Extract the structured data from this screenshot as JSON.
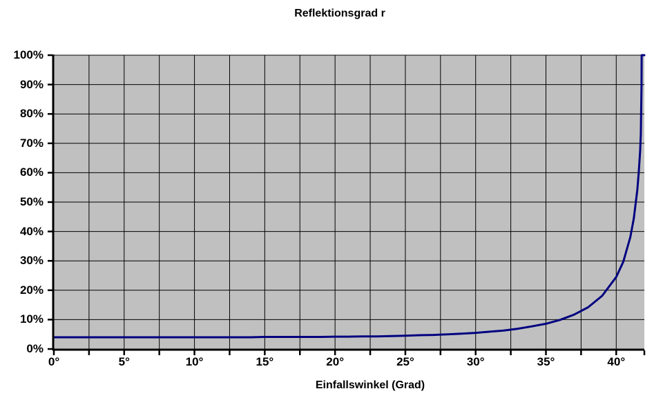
{
  "chart_data": {
    "type": "line",
    "title": "Reflektionsgrad r",
    "xlabel": "Einfallswinkel (Grad)",
    "ylabel": "",
    "xlim": [
      0,
      42
    ],
    "ylim": [
      0,
      100
    ],
    "x_gridline_step": 2.5,
    "y_gridline_step": 10,
    "x_tick_step": 2.5,
    "y_tick_step": 10,
    "x_tick_labels": [
      "0°",
      "5°",
      "10°",
      "15°",
      "20°",
      "25°",
      "30°",
      "35°",
      "40°"
    ],
    "x_tick_label_values": [
      0,
      5,
      10,
      15,
      20,
      25,
      30,
      35,
      40
    ],
    "y_tick_labels": [
      "0%",
      "10%",
      "20%",
      "30%",
      "40%",
      "50%",
      "60%",
      "70%",
      "80%",
      "90%",
      "100%"
    ],
    "y_tick_label_values": [
      0,
      10,
      20,
      30,
      40,
      50,
      60,
      70,
      80,
      90,
      100
    ],
    "grid": true,
    "legend": "none",
    "colors": {
      "plot_background": "#c0c0c0",
      "gridline": "#000000",
      "axis": "#000000",
      "line": "#000080",
      "text": "#000000",
      "page_background": "#ffffff"
    },
    "series": [
      {
        "name": "Reflektionsgrad r",
        "points": [
          [
            0,
            4.0
          ],
          [
            1,
            4.0
          ],
          [
            2,
            4.0
          ],
          [
            3,
            4.0
          ],
          [
            4,
            4.0
          ],
          [
            5,
            4.0
          ],
          [
            6,
            4.0
          ],
          [
            7,
            4.0
          ],
          [
            8,
            4.0
          ],
          [
            9,
            4.0
          ],
          [
            10,
            4.0
          ],
          [
            11,
            4.0
          ],
          [
            12,
            4.0
          ],
          [
            13,
            4.0
          ],
          [
            14,
            4.0
          ],
          [
            15,
            4.1
          ],
          [
            16,
            4.1
          ],
          [
            17,
            4.1
          ],
          [
            18,
            4.1
          ],
          [
            19,
            4.1
          ],
          [
            20,
            4.2
          ],
          [
            21,
            4.2
          ],
          [
            22,
            4.3
          ],
          [
            23,
            4.3
          ],
          [
            24,
            4.4
          ],
          [
            25,
            4.5
          ],
          [
            26,
            4.7
          ],
          [
            27,
            4.8
          ],
          [
            28,
            5.0
          ],
          [
            29,
            5.2
          ],
          [
            30,
            5.5
          ],
          [
            31,
            5.9
          ],
          [
            32,
            6.3
          ],
          [
            33,
            6.9
          ],
          [
            34,
            7.7
          ],
          [
            35,
            8.6
          ],
          [
            36,
            9.9
          ],
          [
            37,
            11.7
          ],
          [
            38,
            14.2
          ],
          [
            39,
            18.1
          ],
          [
            40,
            24.5
          ],
          [
            40.5,
            29.7
          ],
          [
            41,
            38.0
          ],
          [
            41.25,
            44.4
          ],
          [
            41.5,
            54.1
          ],
          [
            41.6,
            60.2
          ],
          [
            41.7,
            67.4
          ],
          [
            41.75,
            73.2
          ],
          [
            41.8,
            89.4
          ],
          [
            41.81,
            100
          ],
          [
            42,
            100
          ]
        ]
      }
    ]
  }
}
